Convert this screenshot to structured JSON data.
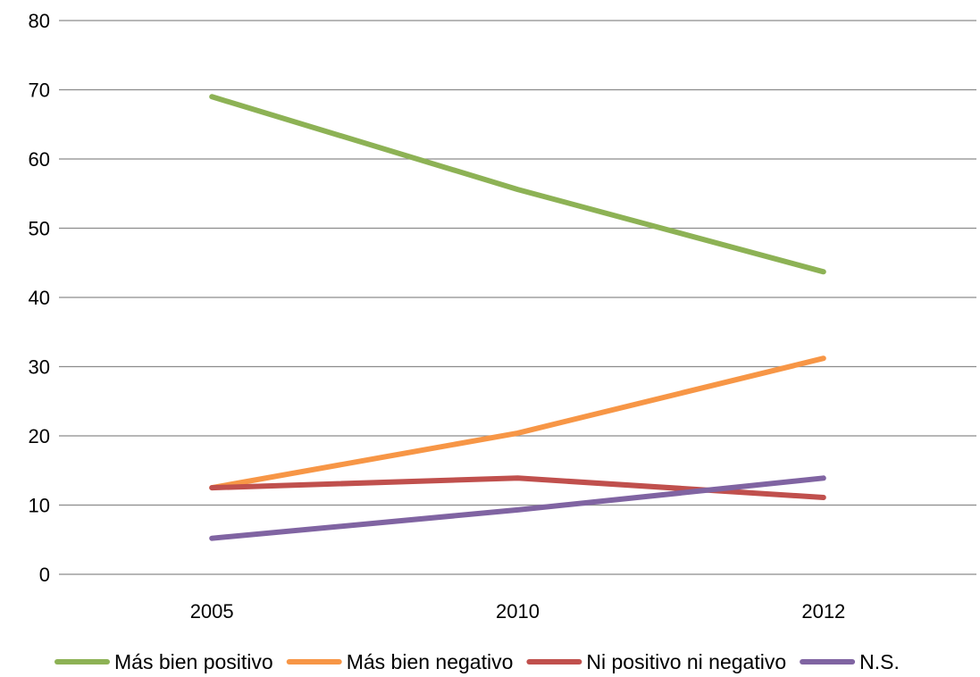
{
  "chart_data": {
    "type": "line",
    "categories": [
      "2005",
      "2010",
      "2012"
    ],
    "series": [
      {
        "name": "Más bien positivo",
        "values": [
          69,
          55.6,
          43.7
        ],
        "color": "#8DB255"
      },
      {
        "name": "Más bien negativo",
        "values": [
          12.5,
          20.4,
          31.2
        ],
        "color": "#F79646"
      },
      {
        "name": "Ni positivo ni negativo",
        "values": [
          12.5,
          13.9,
          11.1
        ],
        "color": "#C0504D"
      },
      {
        "name": "N.S.",
        "values": [
          5.2,
          9.3,
          13.9
        ],
        "color": "#8064A2"
      }
    ],
    "ylim": [
      0,
      80
    ],
    "yticks": [
      0,
      10,
      20,
      30,
      40,
      50,
      60,
      70,
      80
    ],
    "grid": true,
    "legend_position": "bottom",
    "title": "",
    "xlabel": "",
    "ylabel": ""
  }
}
